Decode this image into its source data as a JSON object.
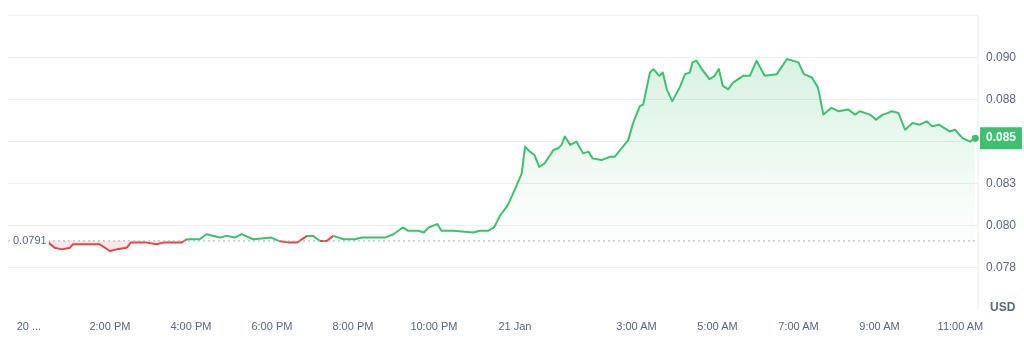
{
  "chart_data": {
    "type": "area",
    "xlim": [
      "--01-20T11:29",
      "--01-21T11:26"
    ],
    "xticks": [
      {
        "value": "--01-20T12:00",
        "label": "20 ..."
      },
      {
        "value": "--01-20T14:00",
        "label": "2:00 PM"
      },
      {
        "value": "--01-20T16:00",
        "label": "4:00 PM"
      },
      {
        "value": "--01-20T18:00",
        "label": "6:00 PM"
      },
      {
        "value": "--01-20T20:00",
        "label": "8:00 PM"
      },
      {
        "value": "--01-20T22:00",
        "label": "10:00 PM"
      },
      {
        "value": "--01-21T00:00",
        "label": "21 Jan"
      },
      {
        "value": "--01-21T03:00",
        "label": "3:00 AM"
      },
      {
        "value": "--01-21T05:00",
        "label": "5:00 AM"
      },
      {
        "value": "--01-21T07:00",
        "label": "7:00 AM"
      },
      {
        "value": "--01-21T09:00",
        "label": "9:00 AM"
      },
      {
        "value": "--01-21T11:00",
        "label": "11:00 AM"
      }
    ],
    "ylim": [
      0.075,
      0.0925
    ],
    "yticks": [
      {
        "value": 0.0775,
        "label": "0.078"
      },
      {
        "value": 0.08,
        "label": "0.080"
      },
      {
        "value": 0.0825,
        "label": "0.083"
      },
      {
        "value": 0.085,
        "label": null
      },
      {
        "value": 0.0875,
        "label": "0.088"
      },
      {
        "value": 0.09,
        "label": "0.090"
      }
    ],
    "ylabel": "USD",
    "grid": "y",
    "ref_lines": [
      {
        "axis": "y",
        "value": 0.0791,
        "label": "0.0791",
        "color": "#a9adb5",
        "line_style": "dotted"
      }
    ],
    "annotations": [
      {
        "text": "0.085",
        "x": "--01-21T11:22",
        "y": 0.0852
      }
    ],
    "series": [
      {
        "color": "#3fbf6f",
        "x": [
          "--01-20T12:29",
          "--01-20T12:38",
          "--01-20T12:49",
          "--01-20T13:01",
          "--01-20T13:05",
          "--01-20T13:45",
          "--01-20T14:00",
          "--01-20T14:10",
          "--01-20T14:25",
          "--01-20T14:31",
          "--01-20T14:55",
          "--01-20T15:09",
          "--01-20T15:19",
          "--01-20T15:46",
          "--01-20T15:54",
          "--01-20T16:13",
          "--01-20T16:23",
          "--01-20T16:43",
          "--01-20T16:53",
          "--01-20T17:05",
          "--01-20T17:15",
          "--01-20T17:32",
          "--01-20T17:59",
          "--01-20T18:10",
          "--01-20T18:26",
          "--01-20T18:37",
          "--01-20T18:52",
          "--01-20T19:01",
          "--01-20T19:11",
          "--01-20T19:21",
          "--01-20T19:31",
          "--01-20T19:46",
          "--01-20T20:03",
          "--01-20T20:13",
          "--01-20T20:20",
          "--01-20T20:30",
          "--01-20T20:47",
          "--01-20T21:00",
          "--01-20T21:14",
          "--01-20T21:22",
          "--01-20T21:37",
          "--01-20T21:45",
          "--01-20T21:52",
          "--01-20T22:05",
          "--01-20T22:11",
          "--01-20T22:29",
          "--01-20T22:58",
          "--01-20T23:08",
          "--01-20T23:20",
          "--01-20T23:29",
          "--01-20T23:38",
          "--01-20T23:49",
          "--01-20T23:56",
          "--01-21T00:10",
          "--01-21T00:15",
          "--01-21T00:22",
          "--01-21T00:29",
          "--01-21T00:36",
          "--01-21T00:44",
          "--01-21T00:57",
          "--01-21T01:04",
          "--01-21T01:09",
          "--01-21T01:14",
          "--01-21T01:22",
          "--01-21T01:31",
          "--01-21T01:41",
          "--01-21T01:49",
          "--01-21T01:55",
          "--01-21T02:08",
          "--01-21T02:21",
          "--01-21T02:28",
          "--01-21T02:48",
          "--01-21T02:55",
          "--01-21T03:05",
          "--01-21T03:10",
          "--01-21T03:20",
          "--01-21T03:25",
          "--01-21T03:34",
          "--01-21T03:39",
          "--01-21T03:45",
          "--01-21T03:53",
          "--01-21T04:04",
          "--01-21T04:12",
          "--01-21T04:19",
          "--01-21T04:23",
          "--01-21T04:29",
          "--01-21T04:37",
          "--01-21T04:48",
          "--01-21T04:56",
          "--01-21T05:02",
          "--01-21T05:08",
          "--01-21T05:16",
          "--01-21T05:23",
          "--01-21T05:38",
          "--01-21T05:48",
          "--01-21T05:58",
          "--01-21T06:10",
          "--01-21T06:28",
          "--01-21T06:43",
          "--01-21T07:00",
          "--01-21T07:08",
          "--01-21T07:20",
          "--01-21T07:29",
          "--01-21T07:37",
          "--01-21T07:49",
          "--01-21T07:59",
          "--01-21T08:14",
          "--01-21T08:24",
          "--01-21T08:31",
          "--01-21T08:46",
          "--01-21T08:55",
          "--01-21T09:05",
          "--01-21T09:13",
          "--01-21T09:18",
          "--01-21T09:28",
          "--01-21T09:38",
          "--01-21T09:49",
          "--01-21T10:00",
          "--01-21T10:10",
          "--01-21T10:18",
          "--01-21T10:28",
          "--01-21T10:44",
          "--01-21T10:52",
          "--01-21T11:03",
          "--01-21T11:14",
          "--01-21T11:22"
        ],
        "values": [
          0.079,
          0.0787,
          0.0786,
          0.0787,
          0.0789,
          0.0789,
          0.0785,
          0.0786,
          0.0787,
          0.079,
          0.079,
          0.0789,
          0.079,
          0.079,
          0.0792,
          0.0792,
          0.0795,
          0.0793,
          0.0794,
          0.0793,
          0.0795,
          0.0792,
          0.0793,
          0.0791,
          0.079,
          0.079,
          0.0794,
          0.0794,
          0.0791,
          0.0791,
          0.0794,
          0.0792,
          0.0792,
          0.0793,
          0.0793,
          0.0793,
          0.0793,
          0.0795,
          0.0799,
          0.0797,
          0.0797,
          0.0796,
          0.0799,
          0.0801,
          0.0797,
          0.0797,
          0.0796,
          0.0797,
          0.0797,
          0.0799,
          0.0806,
          0.0812,
          0.0818,
          0.0831,
          0.0847,
          0.0844,
          0.0842,
          0.0835,
          0.0837,
          0.0845,
          0.0846,
          0.0848,
          0.0853,
          0.0848,
          0.085,
          0.0843,
          0.0844,
          0.084,
          0.0839,
          0.0841,
          0.0841,
          0.0851,
          0.0861,
          0.0871,
          0.0872,
          0.0891,
          0.0893,
          0.0889,
          0.0891,
          0.0881,
          0.0874,
          0.0882,
          0.089,
          0.0891,
          0.0897,
          0.0898,
          0.0893,
          0.0887,
          0.0889,
          0.0893,
          0.0883,
          0.0881,
          0.0885,
          0.0889,
          0.0889,
          0.0898,
          0.0889,
          0.089,
          0.0899,
          0.0897,
          0.089,
          0.0888,
          0.0882,
          0.0866,
          0.087,
          0.0868,
          0.0869,
          0.0866,
          0.0868,
          0.0866,
          0.0863,
          0.0866,
          0.0867,
          0.0868,
          0.0867,
          0.0857,
          0.0861,
          0.086,
          0.0862,
          0.0859,
          0.086,
          0.0856,
          0.0857,
          0.0852,
          0.085,
          0.0852
        ],
        "colors": [
          "#e04848",
          "#e04848",
          "#e04848",
          "#e04848",
          "#e04848",
          "#e04848",
          "#e04848",
          "#e04848",
          "#e04848",
          "#e04848",
          "#e04848",
          "#e04848",
          "#e04848",
          "#e04848",
          "#3fbf6f",
          "#3fbf6f",
          "#3fbf6f",
          "#3fbf6f",
          "#3fbf6f",
          "#3fbf6f",
          "#3fbf6f",
          "#3fbf6f",
          "#3fbf6f",
          "#e04848",
          "#e04848",
          "#e04848",
          "#3fbf6f",
          "#3fbf6f",
          "#e04848",
          "#e04848",
          "#3fbf6f",
          "#3fbf6f",
          "#3fbf6f",
          "#3fbf6f",
          "#3fbf6f",
          "#3fbf6f",
          "#3fbf6f",
          "#3fbf6f",
          "#3fbf6f",
          "#3fbf6f",
          "#3fbf6f",
          "#3fbf6f",
          "#3fbf6f",
          "#3fbf6f",
          "#3fbf6f",
          "#3fbf6f",
          "#3fbf6f",
          "#3fbf6f",
          "#3fbf6f",
          "#3fbf6f",
          "#3fbf6f",
          "#3fbf6f",
          "#3fbf6f",
          "#3fbf6f",
          "#3fbf6f",
          "#3fbf6f",
          "#3fbf6f",
          "#3fbf6f",
          "#3fbf6f",
          "#3fbf6f",
          "#3fbf6f",
          "#3fbf6f",
          "#3fbf6f",
          "#3fbf6f",
          "#3fbf6f",
          "#3fbf6f",
          "#3fbf6f",
          "#3fbf6f",
          "#3fbf6f",
          "#3fbf6f",
          "#3fbf6f",
          "#3fbf6f",
          "#3fbf6f",
          "#3fbf6f",
          "#3fbf6f",
          "#3fbf6f",
          "#3fbf6f",
          "#3fbf6f",
          "#3fbf6f",
          "#3fbf6f",
          "#3fbf6f",
          "#3fbf6f",
          "#3fbf6f",
          "#3fbf6f",
          "#3fbf6f",
          "#3fbf6f",
          "#3fbf6f",
          "#3fbf6f",
          "#3fbf6f",
          "#3fbf6f",
          "#3fbf6f",
          "#3fbf6f",
          "#3fbf6f",
          "#3fbf6f",
          "#3fbf6f",
          "#3fbf6f",
          "#3fbf6f",
          "#3fbf6f",
          "#3fbf6f",
          "#3fbf6f",
          "#3fbf6f",
          "#3fbf6f",
          "#3fbf6f",
          "#3fbf6f",
          "#3fbf6f",
          "#3fbf6f",
          "#3fbf6f",
          "#3fbf6f",
          "#3fbf6f",
          "#3fbf6f",
          "#3fbf6f",
          "#3fbf6f",
          "#3fbf6f",
          "#3fbf6f",
          "#3fbf6f",
          "#3fbf6f",
          "#3fbf6f",
          "#3fbf6f",
          "#3fbf6f",
          "#3fbf6f",
          "#3fbf6f",
          "#3fbf6f",
          "#3fbf6f",
          "#3fbf6f",
          "#3fbf6f",
          "#3fbf6f"
        ]
      }
    ]
  }
}
